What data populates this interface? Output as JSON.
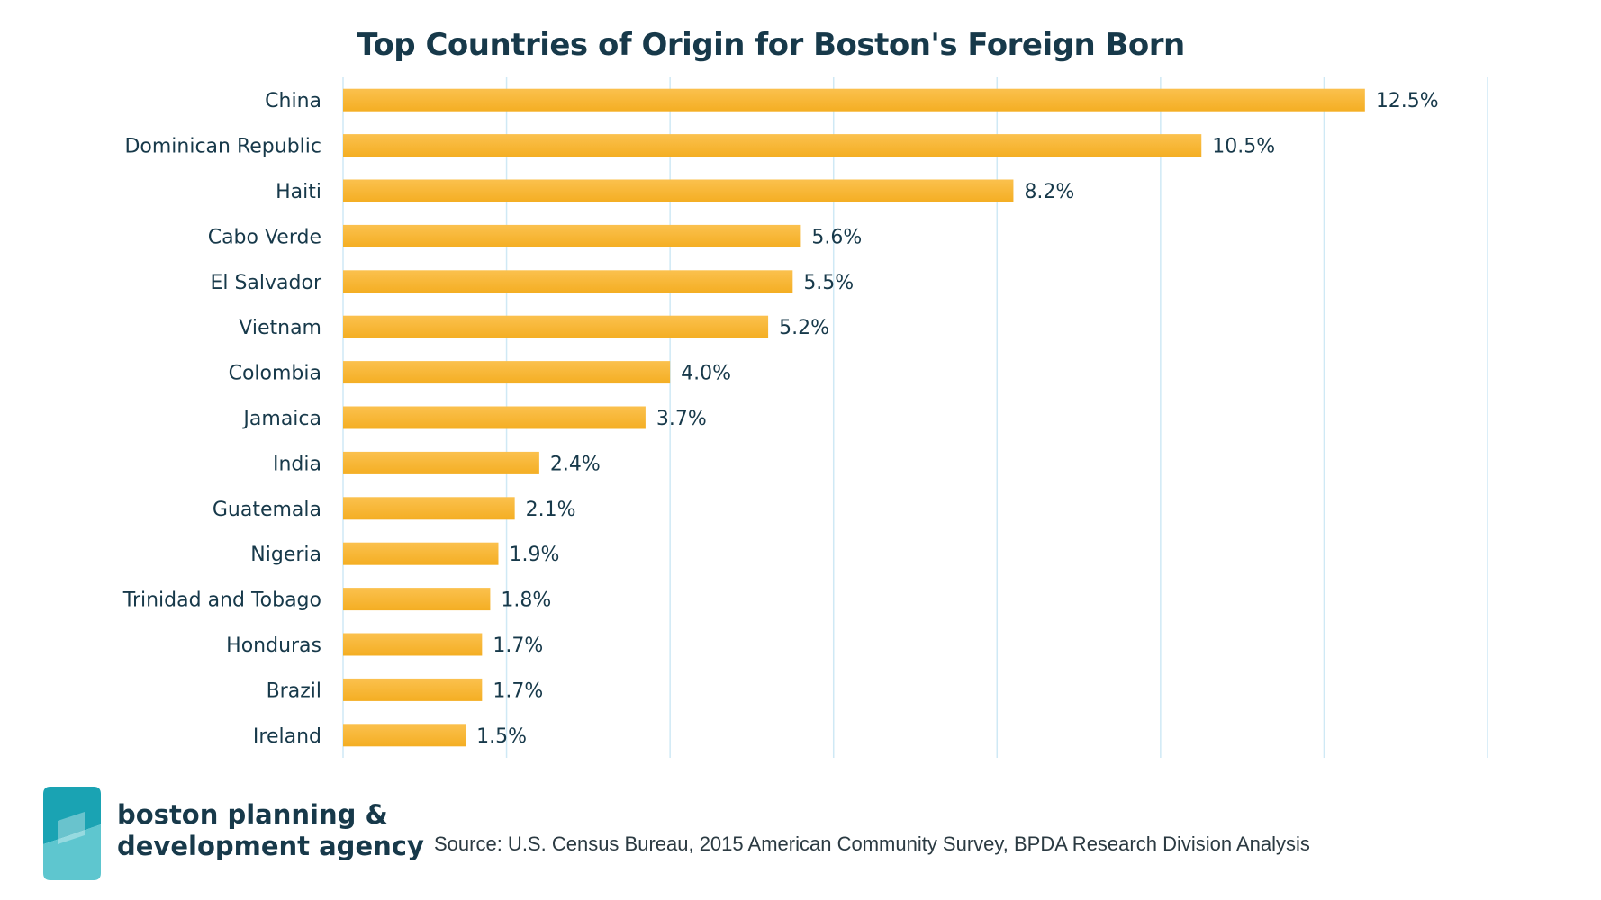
{
  "chart_data": {
    "type": "bar",
    "orientation": "horizontal",
    "title": "Top Countries of Origin for Boston's Foreign Born",
    "categories": [
      "China",
      "Dominican Republic",
      "Haiti",
      "Cabo Verde",
      "El Salvador",
      "Vietnam",
      "Colombia",
      "Jamaica",
      "India",
      "Guatemala",
      "Nigeria",
      "Trinidad and Tobago",
      "Honduras",
      "Brazil",
      "Ireland"
    ],
    "values": [
      12.5,
      10.5,
      8.2,
      5.6,
      5.5,
      5.2,
      4.0,
      3.7,
      2.4,
      2.1,
      1.9,
      1.8,
      1.7,
      1.7,
      1.5
    ],
    "value_labels": [
      "12.5%",
      "10.5%",
      "8.2%",
      "5.6%",
      "5.5%",
      "5.2%",
      "4.0%",
      "3.7%",
      "2.4%",
      "2.1%",
      "1.9%",
      "1.8%",
      "1.7%",
      "1.7%",
      "1.5%"
    ],
    "xlim": [
      0,
      14
    ],
    "x_gridline_step": 2,
    "grid": true,
    "legend": "none",
    "bar_color": "#f4ae23",
    "bar_color_light": "#fbc14e",
    "gridline_color": "#cfe9f5",
    "text_color": "#17394a"
  },
  "logo": {
    "line1": "boston planning &",
    "line2": "development agency",
    "icon": "bpda-logo-icon",
    "colors": [
      "#1aa3b3",
      "#5ec6cf"
    ]
  },
  "source": "Source: U.S. Census Bureau, 2015 American Community Survey, BPDA Research Division Analysis"
}
